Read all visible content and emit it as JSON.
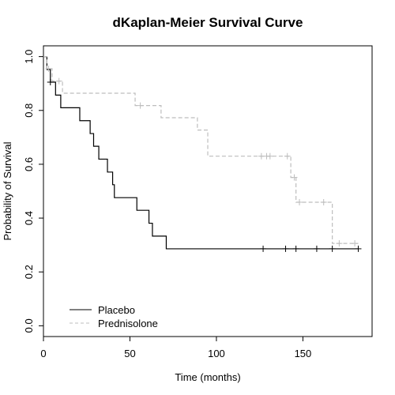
{
  "chart_data": {
    "type": "line",
    "title": "dKaplan-Meier Survival Curve",
    "xlabel": "Time (months)",
    "ylabel": "Probability of Survival",
    "xlim": [
      0,
      190
    ],
    "ylim": [
      -0.04,
      1.04
    ],
    "x_ticks": [
      0,
      50,
      100,
      150
    ],
    "x_tick_labels": [
      "0",
      "50",
      "100",
      "150"
    ],
    "y_ticks": [
      0.0,
      0.2,
      0.4,
      0.6,
      0.8,
      1.0
    ],
    "y_tick_labels": [
      "0.0",
      "0.2",
      "0.4",
      "0.6",
      "0.8",
      "1.0"
    ],
    "grid": false,
    "legend_position": "bottom-left",
    "series": [
      {
        "name": "Placebo",
        "color": "#000000",
        "dash": "solid",
        "steps": [
          [
            0,
            1.0
          ],
          [
            2,
            0.952
          ],
          [
            4,
            0.905
          ],
          [
            7,
            0.857
          ],
          [
            10,
            0.81
          ],
          [
            21,
            0.762
          ],
          [
            27,
            0.714
          ],
          [
            29,
            0.667
          ],
          [
            32,
            0.619
          ],
          [
            37,
            0.571
          ],
          [
            40,
            0.524
          ],
          [
            41,
            0.476
          ],
          [
            54,
            0.429
          ],
          [
            61,
            0.381
          ],
          [
            63,
            0.333
          ],
          [
            71,
            0.286
          ],
          [
            182,
            0.286
          ]
        ],
        "censored": [
          [
            4,
            0.905
          ],
          [
            127,
            0.286
          ],
          [
            140,
            0.286
          ],
          [
            146,
            0.286
          ],
          [
            158,
            0.286
          ],
          [
            167,
            0.286
          ],
          [
            182,
            0.286
          ]
        ]
      },
      {
        "name": "Prednisolone",
        "color": "#bdbdbd",
        "dash": "dashed",
        "steps": [
          [
            0,
            1.0
          ],
          [
            2,
            0.955
          ],
          [
            5,
            0.909
          ],
          [
            11,
            0.864
          ],
          [
            53,
            0.818
          ],
          [
            68,
            0.773
          ],
          [
            89,
            0.727
          ],
          [
            95,
            0.63
          ],
          [
            143,
            0.551
          ],
          [
            146,
            0.459
          ],
          [
            167,
            0.306
          ],
          [
            182,
            0.306
          ]
        ],
        "censored": [
          [
            3,
            0.955
          ],
          [
            9,
            0.909
          ],
          [
            56,
            0.818
          ],
          [
            126,
            0.63
          ],
          [
            129,
            0.63
          ],
          [
            131,
            0.63
          ],
          [
            141,
            0.63
          ],
          [
            145,
            0.551
          ],
          [
            148,
            0.459
          ],
          [
            162,
            0.459
          ],
          [
            171,
            0.306
          ],
          [
            180,
            0.306
          ]
        ]
      }
    ]
  }
}
